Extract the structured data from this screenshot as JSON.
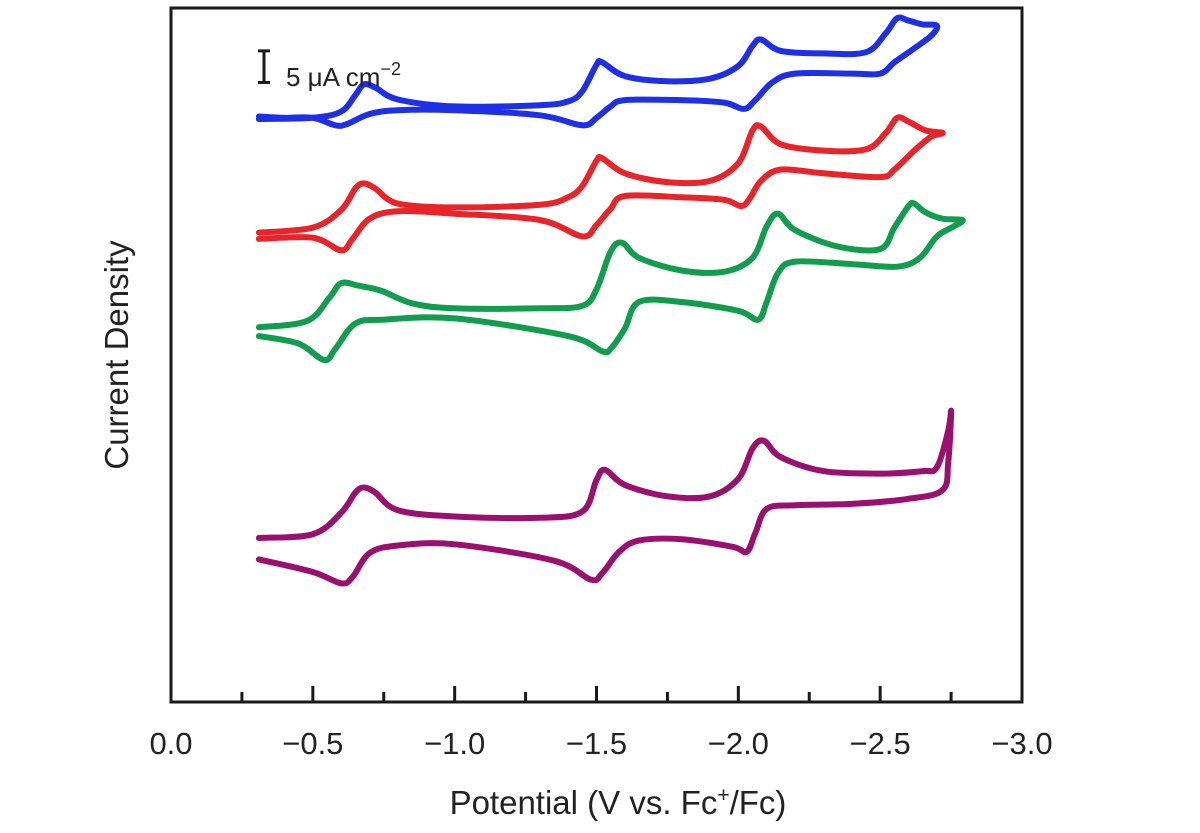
{
  "chart_data": {
    "type": "line",
    "xlabel": "Potential (V vs. Fc",
    "xlabel_sup": "+",
    "xlabel_tail": "/Fc)",
    "ylabel": "Current Density",
    "xlim": [
      0.0,
      -3.0
    ],
    "x_ticks_major": [
      0.0,
      -0.5,
      -1.0,
      -1.5,
      -2.0,
      -2.5,
      -3.0
    ],
    "x_tick_labels": [
      "0.0",
      "−0.5",
      "−1.0",
      "−1.5",
      "−2.0",
      "−2.5",
      "−3.0"
    ],
    "x_ticks_minor": [
      -0.25,
      -0.75,
      -1.25,
      -1.75,
      -2.25,
      -2.75
    ],
    "ylim": [
      -110,
      0
    ],
    "y_ticks_shown": false,
    "grid": false,
    "scale_bar": {
      "label": "5 μA cm",
      "exponent": "−2",
      "size": 5
    },
    "series": [
      {
        "color": "#1f2fe6",
        "forward": [
          [
            -0.31,
            -17.6
          ],
          [
            -0.5,
            -17.4
          ],
          [
            -0.6,
            -16.4
          ],
          [
            -0.65,
            -13.8
          ],
          [
            -0.68,
            -12.1
          ],
          [
            -0.72,
            -12.6
          ],
          [
            -0.8,
            -14.5
          ],
          [
            -1.0,
            -15.6
          ],
          [
            -1.3,
            -15.4
          ],
          [
            -1.4,
            -14.8
          ],
          [
            -1.45,
            -13.2
          ],
          [
            -1.5,
            -9.0
          ],
          [
            -1.52,
            -8.6
          ],
          [
            -1.6,
            -10.8
          ],
          [
            -1.75,
            -11.6
          ],
          [
            -1.9,
            -11.2
          ],
          [
            -2.0,
            -9.2
          ],
          [
            -2.05,
            -6.0
          ],
          [
            -2.08,
            -5.0
          ],
          [
            -2.15,
            -6.8
          ],
          [
            -2.3,
            -7.2
          ],
          [
            -2.45,
            -7.0
          ],
          [
            -2.52,
            -4.0
          ],
          [
            -2.56,
            -1.6
          ],
          [
            -2.6,
            -2.0
          ],
          [
            -2.65,
            -2.6
          ],
          [
            -2.7,
            -2.8
          ]
        ],
        "backward": [
          [
            -2.7,
            -2.8
          ],
          [
            -2.68,
            -4.4
          ],
          [
            -2.62,
            -6.4
          ],
          [
            -2.55,
            -8.6
          ],
          [
            -2.5,
            -10.4
          ],
          [
            -2.4,
            -10.4
          ],
          [
            -2.2,
            -10.4
          ],
          [
            -2.12,
            -11.8
          ],
          [
            -2.06,
            -14.6
          ],
          [
            -2.02,
            -16.0
          ],
          [
            -1.95,
            -15.0
          ],
          [
            -1.8,
            -14.6
          ],
          [
            -1.6,
            -14.6
          ],
          [
            -1.55,
            -15.6
          ],
          [
            -1.5,
            -17.4
          ],
          [
            -1.45,
            -18.6
          ],
          [
            -1.3,
            -17.0
          ],
          [
            -1.0,
            -16.2
          ],
          [
            -0.8,
            -16.2
          ],
          [
            -0.7,
            -16.8
          ],
          [
            -0.62,
            -18.4
          ],
          [
            -0.58,
            -18.6
          ],
          [
            -0.5,
            -17.4
          ],
          [
            -0.4,
            -17.4
          ],
          [
            -0.31,
            -17.2
          ]
        ]
      },
      {
        "color": "#e8242a",
        "forward": [
          [
            -0.31,
            -35.6
          ],
          [
            -0.5,
            -34.8
          ],
          [
            -0.6,
            -32.0
          ],
          [
            -0.65,
            -28.6
          ],
          [
            -0.68,
            -27.8
          ],
          [
            -0.72,
            -28.6
          ],
          [
            -0.8,
            -31.0
          ],
          [
            -1.0,
            -31.6
          ],
          [
            -1.3,
            -31.2
          ],
          [
            -1.4,
            -30.0
          ],
          [
            -1.45,
            -28.2
          ],
          [
            -1.5,
            -24.2
          ],
          [
            -1.52,
            -23.8
          ],
          [
            -1.6,
            -26.2
          ],
          [
            -1.75,
            -27.6
          ],
          [
            -1.9,
            -27.4
          ],
          [
            -2.0,
            -24.6
          ],
          [
            -2.05,
            -19.4
          ],
          [
            -2.08,
            -18.8
          ],
          [
            -2.15,
            -21.6
          ],
          [
            -2.3,
            -22.6
          ],
          [
            -2.45,
            -22.4
          ],
          [
            -2.52,
            -19.8
          ],
          [
            -2.56,
            -17.4
          ],
          [
            -2.6,
            -18.0
          ],
          [
            -2.66,
            -19.4
          ],
          [
            -2.72,
            -19.8
          ]
        ],
        "backward": [
          [
            -2.72,
            -19.8
          ],
          [
            -2.68,
            -20.4
          ],
          [
            -2.62,
            -22.6
          ],
          [
            -2.55,
            -25.6
          ],
          [
            -2.5,
            -26.8
          ],
          [
            -2.3,
            -26.2
          ],
          [
            -2.15,
            -25.6
          ],
          [
            -2.08,
            -27.4
          ],
          [
            -2.04,
            -30.2
          ],
          [
            -2.01,
            -31.4
          ],
          [
            -1.95,
            -30.4
          ],
          [
            -1.8,
            -30.0
          ],
          [
            -1.6,
            -29.8
          ],
          [
            -1.55,
            -31.8
          ],
          [
            -1.5,
            -34.4
          ],
          [
            -1.45,
            -36.2
          ],
          [
            -1.3,
            -33.6
          ],
          [
            -1.0,
            -32.6
          ],
          [
            -0.8,
            -32.2
          ],
          [
            -0.7,
            -33.4
          ],
          [
            -0.64,
            -36.6
          ],
          [
            -0.6,
            -38.4
          ],
          [
            -0.5,
            -36.4
          ],
          [
            -0.31,
            -36.6
          ]
        ]
      },
      {
        "color": "#119c4e",
        "forward": [
          [
            -0.31,
            -50.6
          ],
          [
            -0.48,
            -49.6
          ],
          [
            -0.56,
            -45.8
          ],
          [
            -0.6,
            -43.6
          ],
          [
            -0.66,
            -44.0
          ],
          [
            -0.74,
            -44.8
          ],
          [
            -0.85,
            -46.8
          ],
          [
            -1.0,
            -47.6
          ],
          [
            -1.3,
            -47.6
          ],
          [
            -1.45,
            -47.2
          ],
          [
            -1.5,
            -44.6
          ],
          [
            -1.55,
            -38.6
          ],
          [
            -1.59,
            -37.2
          ],
          [
            -1.65,
            -39.6
          ],
          [
            -1.8,
            -41.6
          ],
          [
            -1.95,
            -41.8
          ],
          [
            -2.05,
            -39.6
          ],
          [
            -2.1,
            -34.6
          ],
          [
            -2.14,
            -32.6
          ],
          [
            -2.2,
            -35.2
          ],
          [
            -2.35,
            -37.8
          ],
          [
            -2.5,
            -38.2
          ],
          [
            -2.55,
            -34.8
          ],
          [
            -2.6,
            -31.4
          ],
          [
            -2.62,
            -31.0
          ],
          [
            -2.66,
            -32.4
          ],
          [
            -2.72,
            -33.4
          ],
          [
            -2.79,
            -33.6
          ]
        ],
        "backward": [
          [
            -2.79,
            -33.6
          ],
          [
            -2.76,
            -34.6
          ],
          [
            -2.7,
            -36.2
          ],
          [
            -2.64,
            -39.6
          ],
          [
            -2.56,
            -41.0
          ],
          [
            -2.4,
            -40.6
          ],
          [
            -2.2,
            -40.2
          ],
          [
            -2.14,
            -42.0
          ],
          [
            -2.1,
            -46.6
          ],
          [
            -2.07,
            -49.4
          ],
          [
            -2.0,
            -48.0
          ],
          [
            -1.8,
            -46.6
          ],
          [
            -1.65,
            -46.6
          ],
          [
            -1.6,
            -50.8
          ],
          [
            -1.55,
            -54.0
          ],
          [
            -1.52,
            -54.4
          ],
          [
            -1.4,
            -52.0
          ],
          [
            -1.0,
            -49.2
          ],
          [
            -0.75,
            -49.4
          ],
          [
            -0.65,
            -50.0
          ],
          [
            -0.58,
            -54.0
          ],
          [
            -0.54,
            -55.8
          ],
          [
            -0.45,
            -53.2
          ],
          [
            -0.31,
            -52.0
          ]
        ]
      },
      {
        "color": "#99106f",
        "forward": [
          [
            -0.31,
            -84.0
          ],
          [
            -0.5,
            -83.4
          ],
          [
            -0.6,
            -80.0
          ],
          [
            -0.65,
            -76.8
          ],
          [
            -0.68,
            -76.0
          ],
          [
            -0.72,
            -76.8
          ],
          [
            -0.8,
            -79.6
          ],
          [
            -1.0,
            -80.6
          ],
          [
            -1.3,
            -80.8
          ],
          [
            -1.45,
            -79.8
          ],
          [
            -1.5,
            -74.8
          ],
          [
            -1.53,
            -73.2
          ],
          [
            -1.6,
            -75.6
          ],
          [
            -1.75,
            -77.4
          ],
          [
            -1.9,
            -77.4
          ],
          [
            -2.0,
            -74.6
          ],
          [
            -2.05,
            -69.8
          ],
          [
            -2.09,
            -68.6
          ],
          [
            -2.15,
            -71.2
          ],
          [
            -2.3,
            -73.4
          ],
          [
            -2.5,
            -73.8
          ],
          [
            -2.65,
            -73.4
          ],
          [
            -2.7,
            -72.8
          ],
          [
            -2.74,
            -67.0
          ],
          [
            -2.75,
            -64.0
          ]
        ],
        "backward": [
          [
            -2.75,
            -64.0
          ],
          [
            -2.74,
            -72.0
          ],
          [
            -2.72,
            -76.4
          ],
          [
            -2.6,
            -77.8
          ],
          [
            -2.4,
            -78.6
          ],
          [
            -2.2,
            -78.8
          ],
          [
            -2.1,
            -79.4
          ],
          [
            -2.06,
            -83.2
          ],
          [
            -2.03,
            -86.2
          ],
          [
            -1.98,
            -85.4
          ],
          [
            -1.8,
            -84.2
          ],
          [
            -1.65,
            -84.4
          ],
          [
            -1.58,
            -86.2
          ],
          [
            -1.52,
            -89.6
          ],
          [
            -1.48,
            -90.6
          ],
          [
            -1.35,
            -87.6
          ],
          [
            -1.0,
            -85.0
          ],
          [
            -0.8,
            -85.2
          ],
          [
            -0.7,
            -86.4
          ],
          [
            -0.64,
            -90.2
          ],
          [
            -0.6,
            -91.2
          ],
          [
            -0.5,
            -89.4
          ],
          [
            -0.31,
            -87.4
          ]
        ]
      }
    ]
  }
}
